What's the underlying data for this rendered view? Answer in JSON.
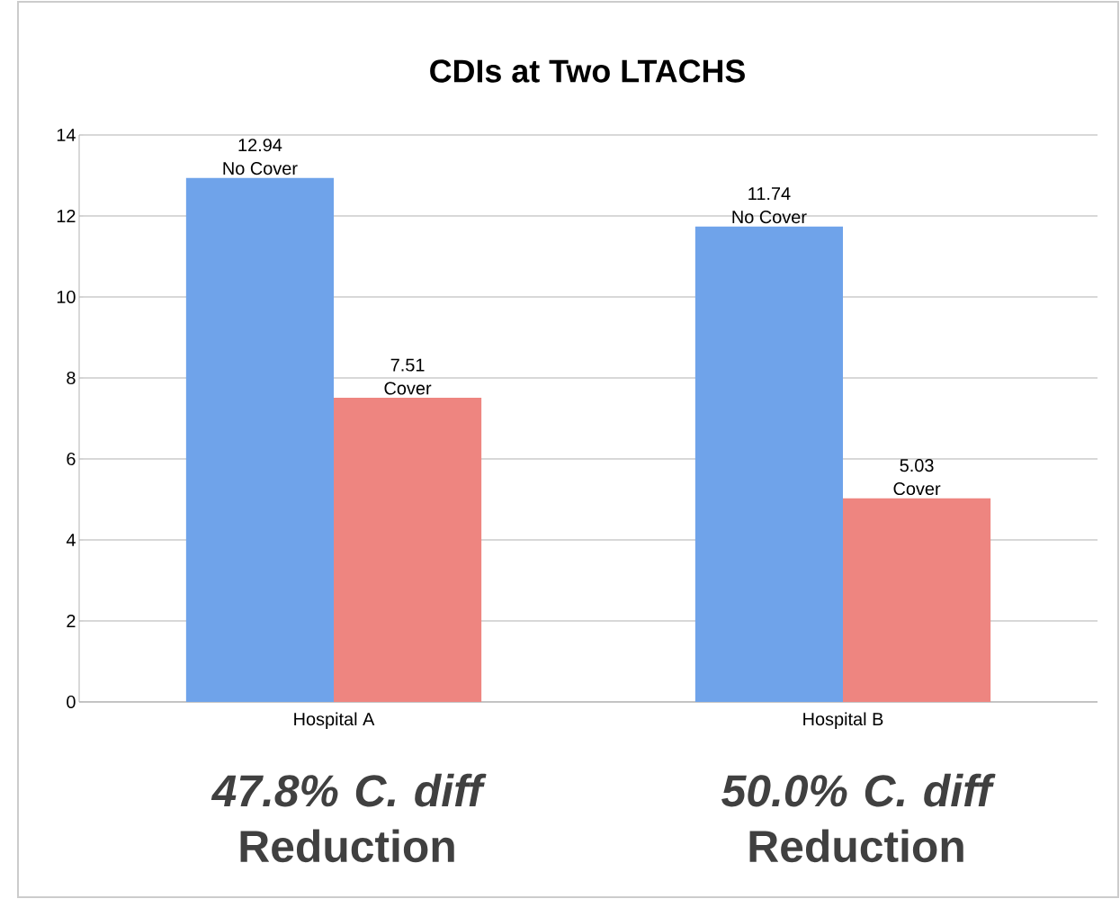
{
  "chart_data": {
    "type": "bar",
    "title": "CDIs at Two LTACHS",
    "categories": [
      "Hospital A",
      "Hospital B"
    ],
    "series": [
      {
        "name": "No Cover",
        "color": "#6fa3ea",
        "values": [
          12.94,
          11.74
        ]
      },
      {
        "name": "Cover",
        "color": "#ee8580",
        "values": [
          7.51,
          5.03
        ]
      }
    ],
    "ylim": [
      0,
      14
    ],
    "yticks": [
      0,
      2,
      4,
      6,
      8,
      10,
      12,
      14
    ],
    "grid": "y",
    "legend": false,
    "data_labels": true,
    "annotations": [
      "*47.8% C. diff* Reduction",
      "*50.0% C. diff* Reduction"
    ]
  }
}
